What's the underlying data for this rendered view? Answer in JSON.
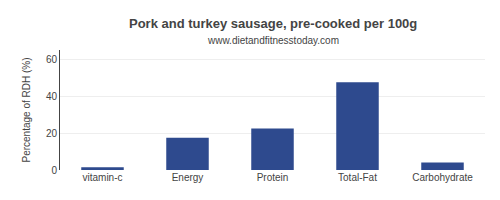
{
  "chart_data": {
    "type": "bar",
    "title": "Pork and turkey sausage, pre-cooked per 100g",
    "subtitle": "www.dietandfitnesstoday.com",
    "categories": [
      "vitamin-c",
      "Energy",
      "Protein",
      "Total-Fat",
      "Carbohydrate"
    ],
    "values": [
      1.5,
      17.5,
      22.5,
      47.5,
      4.0
    ],
    "color": "#2e4a8e",
    "ylabel": "Percentage of RDH (%)",
    "ylim": [
      0,
      65
    ],
    "yticks": [
      0,
      20,
      40,
      60
    ],
    "grid": true
  }
}
